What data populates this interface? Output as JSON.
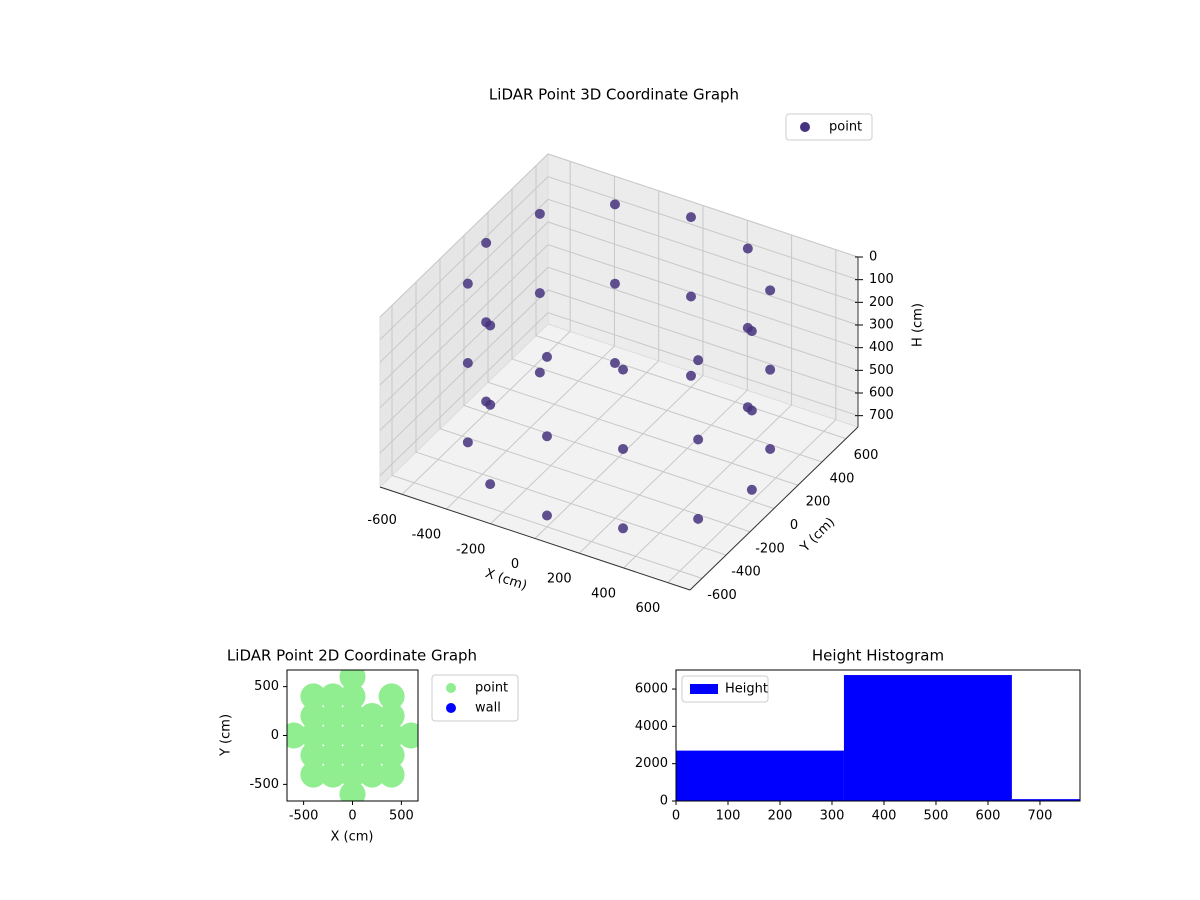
{
  "chart_data": [
    {
      "type": "scatter3d",
      "title": "LiDAR Point 3D Coordinate Graph",
      "xlabel": "X (cm)",
      "ylabel": "Y (cm)",
      "zlabel": "H (cm)",
      "series": [
        {
          "name": "point",
          "color": "#46337e",
          "x": [
            600,
            520,
            300,
            0,
            -300,
            -520,
            -600,
            -520,
            -300,
            0,
            300,
            520,
            600,
            520,
            300,
            0,
            -300,
            -520,
            -600,
            -520,
            -300,
            0,
            300,
            520,
            600,
            520,
            300,
            0,
            -300,
            -520,
            -600,
            -520,
            -300,
            0,
            300,
            520
          ],
          "y": [
            0,
            300,
            520,
            600,
            520,
            300,
            0,
            -300,
            -520,
            -600,
            -520,
            -300,
            0,
            300,
            520,
            600,
            520,
            300,
            0,
            -300,
            -520,
            -600,
            -520,
            -300,
            0,
            300,
            520,
            600,
            520,
            300,
            0,
            -300,
            -520,
            -600,
            -520,
            -300
          ],
          "z": [
            0,
            0,
            0,
            0,
            0,
            0,
            0,
            0,
            0,
            0,
            0,
            0,
            350,
            350,
            350,
            350,
            350,
            350,
            350,
            350,
            350,
            350,
            350,
            350,
            700,
            700,
            700,
            700,
            700,
            700,
            700,
            700,
            700,
            700,
            700,
            700
          ]
        }
      ],
      "xlim": [
        -700,
        700
      ],
      "ylim": [
        -700,
        700
      ],
      "zlim": [
        0,
        750
      ],
      "z_inverted": true,
      "xticks": [
        -600,
        -400,
        -200,
        0,
        200,
        400,
        600
      ],
      "yticks": [
        -600,
        -400,
        -200,
        0,
        200,
        400,
        600
      ],
      "zticks": [
        0,
        100,
        200,
        300,
        400,
        500,
        600,
        700
      ],
      "grid": true,
      "legend": "upper right"
    },
    {
      "type": "scatter",
      "title": "LiDAR Point 2D Coordinate Graph",
      "xlabel": "X (cm)",
      "ylabel": "Y (cm)",
      "series": [
        {
          "name": "point",
          "color": "#90ee90",
          "x": [
            0,
            -400,
            -200,
            0,
            200,
            400,
            -400,
            -200,
            0,
            200,
            400,
            -600,
            -400,
            -200,
            0,
            200,
            400,
            600,
            -400,
            -200,
            0,
            200,
            400,
            -400,
            -200,
            0,
            400,
            0
          ],
          "y": [
            -600,
            -400,
            -400,
            -400,
            -400,
            -400,
            -200,
            -200,
            -200,
            -200,
            -200,
            0,
            0,
            0,
            0,
            0,
            0,
            0,
            200,
            200,
            200,
            200,
            200,
            400,
            400,
            400,
            400,
            600
          ]
        },
        {
          "name": "wall",
          "color": "#0000ff",
          "x": [],
          "y": []
        }
      ],
      "xlim": [
        -670,
        670
      ],
      "ylim": [
        -670,
        670
      ],
      "xticks": [
        -500,
        0,
        500
      ],
      "yticks": [
        -500,
        0,
        500
      ],
      "legend": "outside right"
    },
    {
      "type": "histogram",
      "title": "Height Histogram",
      "bins": [
        0,
        323,
        646,
        777
      ],
      "series": [
        {
          "name": "Height",
          "color": "#0000ff",
          "values": [
            2700,
            6750,
            100
          ]
        }
      ],
      "xlim": [
        0,
        777
      ],
      "ylim": [
        0,
        7020
      ],
      "xticks": [
        0,
        100,
        200,
        300,
        400,
        500,
        600,
        700
      ],
      "yticks": [
        0,
        2000,
        4000,
        6000
      ],
      "legend": "upper left"
    }
  ]
}
